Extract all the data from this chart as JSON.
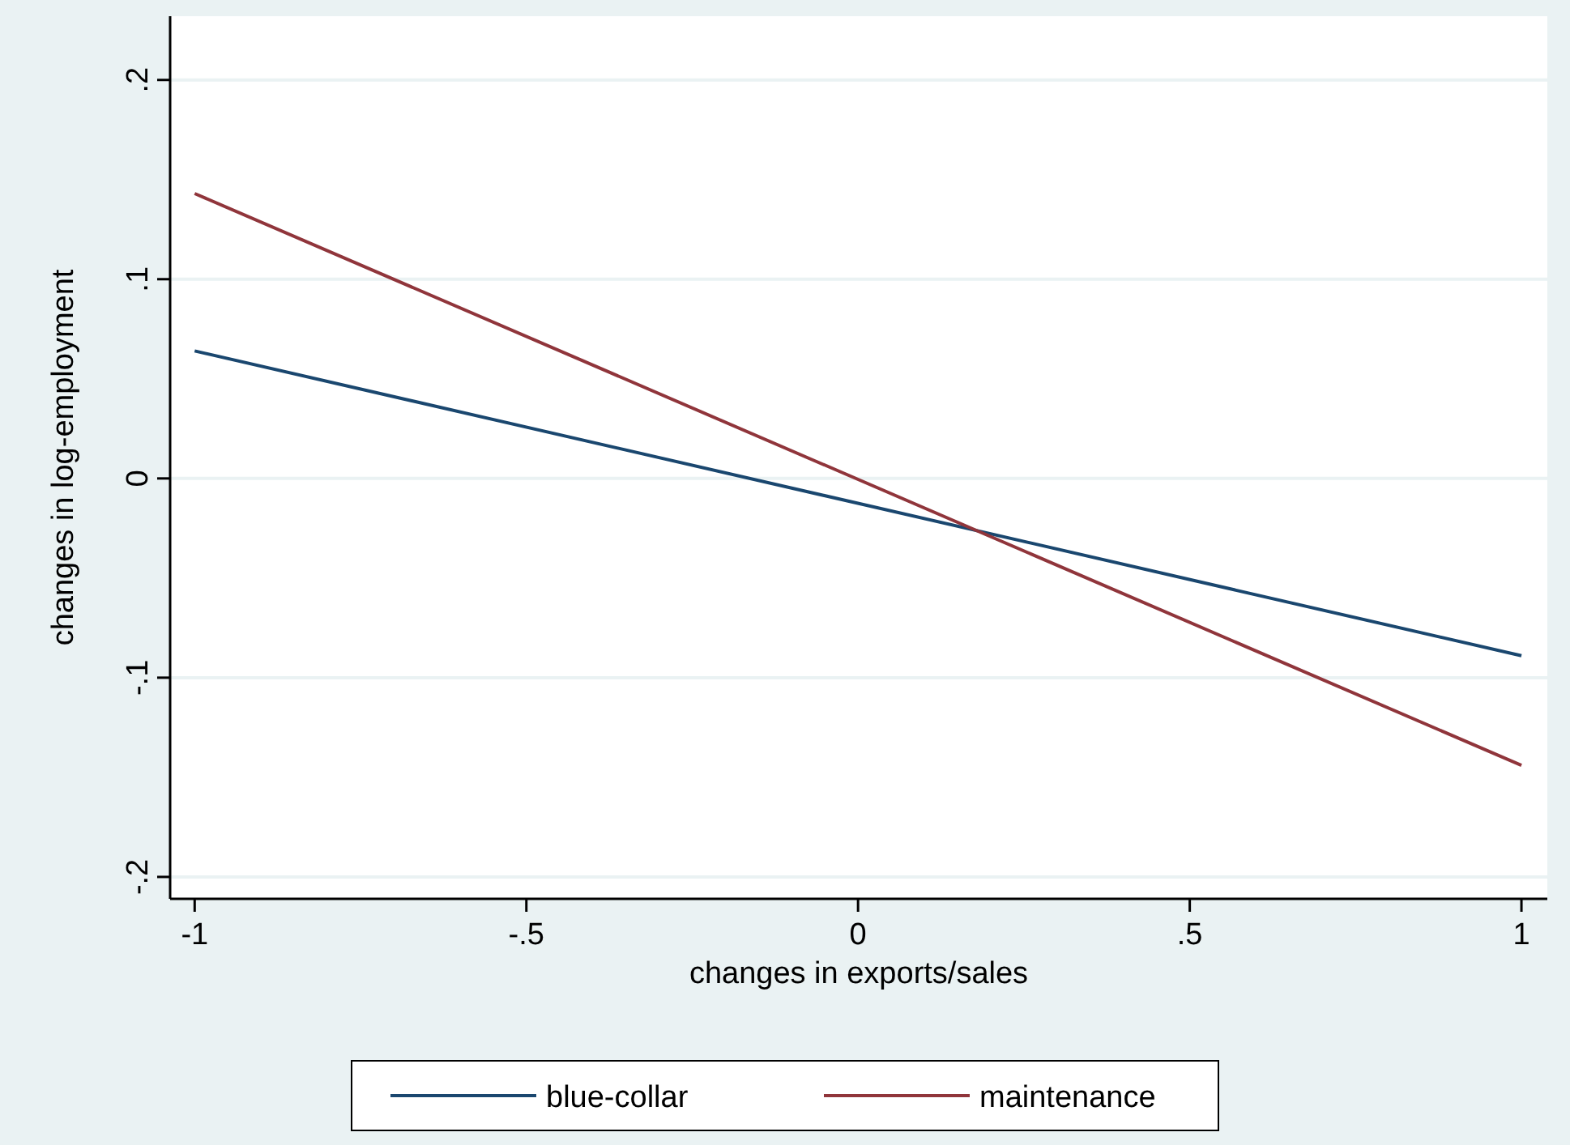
{
  "chart_data": {
    "type": "line",
    "xlabel": "changes in exports/sales",
    "ylabel": "changes in log-employment",
    "xlim": [
      -1.037,
      1.039
    ],
    "ylim": [
      -0.211,
      0.232
    ],
    "xticks": [
      {
        "value": -1,
        "label": "-1"
      },
      {
        "value": -0.5,
        "label": "-.5"
      },
      {
        "value": 0,
        "label": "0"
      },
      {
        "value": 0.5,
        "label": ".5"
      },
      {
        "value": 1,
        "label": "1"
      }
    ],
    "yticks": [
      {
        "value": -0.2,
        "label": "-.2"
      },
      {
        "value": -0.1,
        "label": "-.1"
      },
      {
        "value": 0,
        "label": "0"
      },
      {
        "value": 0.1,
        "label": ".1"
      },
      {
        "value": 0.2,
        "label": ".2"
      }
    ],
    "grid": "y",
    "legend": "bottom",
    "line_style": "solid",
    "x": [
      -1,
      1
    ],
    "series": [
      {
        "name": "blue-collar",
        "color": "#1a476f",
        "values": [
          0.064,
          -0.089
        ]
      },
      {
        "name": "maintenance",
        "color": "#90353b",
        "values": [
          0.143,
          -0.144
        ]
      }
    ]
  }
}
